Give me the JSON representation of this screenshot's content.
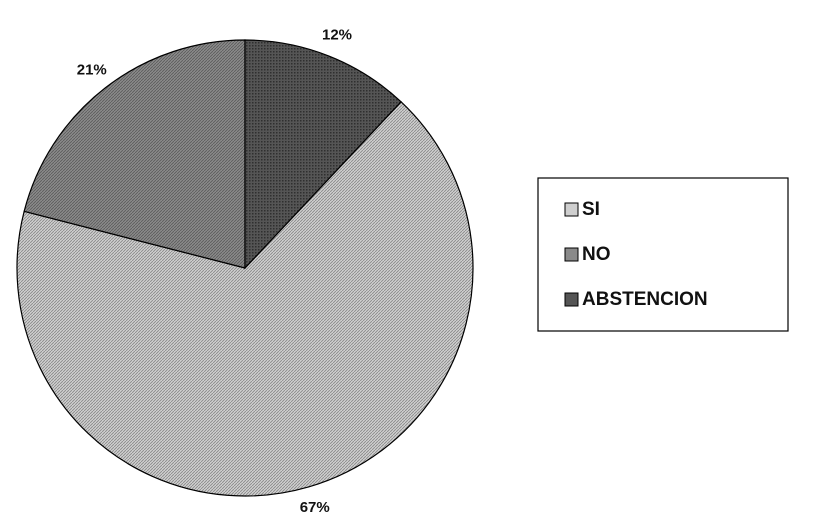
{
  "chart_data": {
    "type": "pie",
    "categories": [
      "SI",
      "NO",
      "ABSTENCION"
    ],
    "values": [
      67,
      21,
      12
    ],
    "value_labels": [
      "67%",
      "21%",
      "12%"
    ],
    "colors": [
      "#cfcfcf",
      "#8a8a8a",
      "#555555"
    ]
  }
}
